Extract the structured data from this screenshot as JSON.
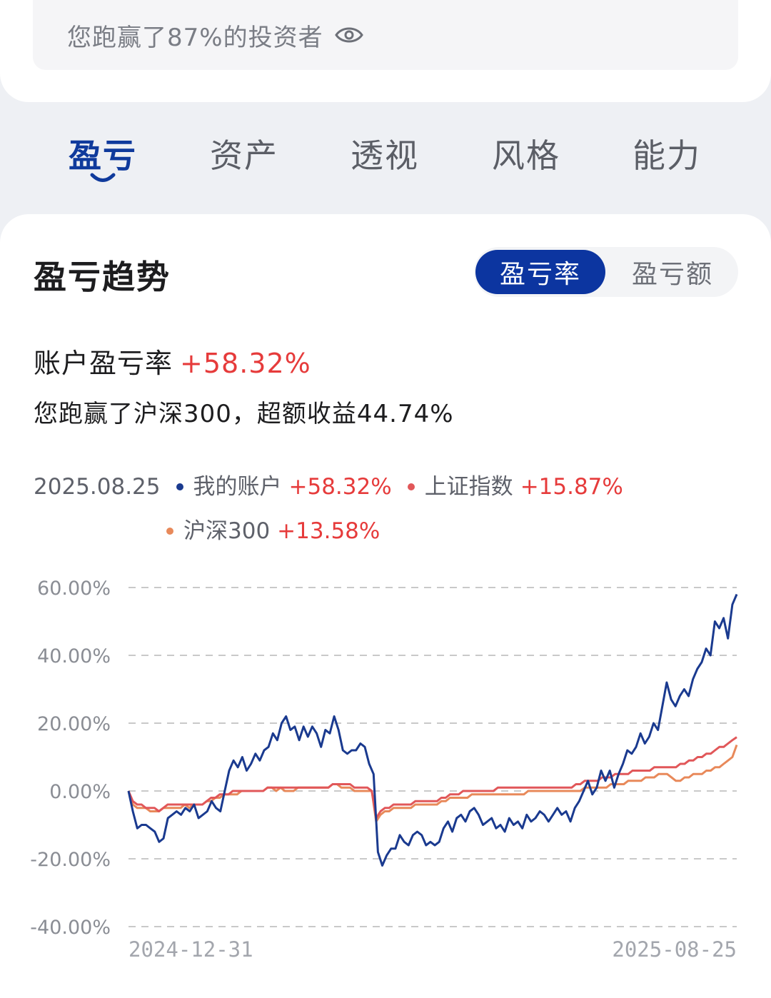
{
  "top_card": {
    "beat_text": "您跑赢了87%的投资者",
    "eye_icon": "eye-icon"
  },
  "tabs": [
    {
      "label": "盈亏",
      "active": true
    },
    {
      "label": "资产",
      "active": false
    },
    {
      "label": "透视",
      "active": false
    },
    {
      "label": "风格",
      "active": false
    },
    {
      "label": "能力",
      "active": false
    }
  ],
  "section": {
    "title": "盈亏趋势",
    "toggle": {
      "rate": "盈亏率",
      "amount": "盈亏额"
    },
    "rate_label": "账户盈亏率",
    "rate_value": "+58.32%",
    "beat_line": "您跑赢了沪深300，超额收益44.74%"
  },
  "legend": {
    "date": "2025.08.25",
    "items": [
      {
        "name": "我的账户",
        "value": "+58.32%",
        "color": "#1a3a8f"
      },
      {
        "name": "上证指数",
        "value": "+15.87%",
        "color": "#e15759"
      },
      {
        "name": "沪深300",
        "value": "+13.58%",
        "color": "#e8895a"
      }
    ]
  },
  "colors": {
    "accent": "#0c35a0",
    "up": "#e63b3b",
    "grid": "#c9c9c9"
  },
  "chart_data": {
    "type": "line",
    "x_start": "2024-12-31",
    "x_end": "2025-08-25",
    "x_tick_labels": [
      "2024-12-31",
      "2025-08-25"
    ],
    "y_tick_labels": [
      "60.00%",
      "40.00%",
      "20.00%",
      "0.00%",
      "-20.00%",
      "-40.00%"
    ],
    "ylim": [
      -40,
      60
    ],
    "y_ticks": [
      60,
      40,
      20,
      0,
      -20,
      -40
    ],
    "grid": true,
    "series": [
      {
        "name": "我的账户",
        "color": "#1a3a8f",
        "values": [
          0,
          -6,
          -11,
          -10,
          -10,
          -11,
          -12,
          -15,
          -14,
          -8,
          -7,
          -6,
          -7,
          -5,
          -6,
          -4,
          -8,
          -7,
          -6,
          -3,
          -5,
          -6,
          0,
          6,
          9,
          7,
          10,
          6,
          8,
          11,
          9,
          12,
          13,
          17,
          15,
          20,
          22,
          18,
          19,
          15,
          19,
          16,
          19,
          17,
          13,
          18,
          17,
          22,
          18,
          12,
          11,
          12,
          12,
          14,
          13,
          8,
          5,
          -18,
          -22,
          -19,
          -17,
          -17,
          -13,
          -15,
          -16,
          -13,
          -12,
          -13,
          -16,
          -15,
          -16,
          -15,
          -11,
          -9,
          -12,
          -8,
          -7,
          -9,
          -6,
          -5,
          -7,
          -10,
          -9,
          -8,
          -11,
          -10,
          -12,
          -8,
          -10,
          -9,
          -11,
          -7,
          -9,
          -8,
          -6,
          -7,
          -9,
          -7,
          -5,
          -7,
          -6,
          -9,
          -5,
          -3,
          0,
          3,
          -1,
          1,
          6,
          3,
          6,
          1,
          5,
          8,
          12,
          11,
          13,
          17,
          14,
          16,
          20,
          18,
          25,
          32,
          27,
          25,
          28,
          30,
          28,
          33,
          36,
          38,
          42,
          40,
          50,
          48,
          51,
          45,
          55,
          58
        ]
      },
      {
        "name": "上证指数",
        "color": "#e15759",
        "values": [
          0,
          -3,
          -4,
          -4,
          -5,
          -5,
          -5,
          -6,
          -5,
          -4,
          -4,
          -4,
          -4,
          -4,
          -4,
          -4,
          -4,
          -4,
          -3,
          -2,
          -2,
          -1,
          -1,
          -1,
          0,
          0,
          0,
          0,
          0,
          0,
          0,
          0,
          1,
          1,
          1,
          1,
          1,
          1,
          1,
          1,
          1,
          1,
          1,
          1,
          1,
          1,
          1,
          2,
          2,
          2,
          2,
          2,
          1,
          1,
          1,
          1,
          0,
          -8,
          -6,
          -5,
          -5,
          -4,
          -4,
          -4,
          -4,
          -4,
          -3,
          -3,
          -3,
          -3,
          -3,
          -3,
          -2,
          -2,
          -1,
          -1,
          -1,
          0,
          0,
          0,
          0,
          0,
          0,
          0,
          0,
          1,
          1,
          1,
          1,
          1,
          1,
          1,
          1,
          1,
          1,
          1,
          1,
          1,
          1,
          1,
          1,
          1,
          1,
          2,
          2,
          3,
          3,
          3,
          3,
          4,
          4,
          4,
          5,
          5,
          5,
          5,
          6,
          6,
          6,
          6,
          6,
          7,
          7,
          7,
          7,
          7,
          7,
          8,
          8,
          9,
          9,
          10,
          10,
          11,
          11,
          12,
          13,
          13,
          14,
          15,
          15.87
        ]
      },
      {
        "name": "沪深300",
        "color": "#e8895a",
        "values": [
          0,
          -4,
          -5,
          -5,
          -5,
          -6,
          -6,
          -6,
          -5,
          -5,
          -5,
          -5,
          -5,
          -4,
          -5,
          -4,
          -4,
          -4,
          -3,
          -3,
          -2,
          -2,
          -1,
          -1,
          -1,
          -1,
          0,
          0,
          0,
          0,
          0,
          0,
          1,
          1,
          0,
          1,
          0,
          0,
          0,
          1,
          1,
          1,
          1,
          1,
          1,
          1,
          1,
          2,
          2,
          1,
          1,
          1,
          0,
          0,
          0,
          0,
          0,
          -9,
          -7,
          -6,
          -6,
          -5,
          -5,
          -5,
          -5,
          -5,
          -4,
          -4,
          -4,
          -4,
          -4,
          -4,
          -3,
          -3,
          -2,
          -2,
          -2,
          -2,
          -2,
          -1,
          -1,
          -1,
          -1,
          -1,
          -1,
          -1,
          -1,
          -1,
          -1,
          -1,
          -1,
          -1,
          0,
          0,
          0,
          0,
          0,
          0,
          0,
          0,
          0,
          0,
          0,
          0,
          0,
          1,
          1,
          1,
          1,
          1,
          1,
          2,
          2,
          2,
          2,
          3,
          3,
          3,
          3,
          4,
          4,
          4,
          5,
          5,
          5,
          4,
          3,
          3,
          4,
          4,
          5,
          5,
          5,
          6,
          6,
          7,
          7,
          8,
          9,
          10,
          13.58
        ]
      }
    ]
  }
}
